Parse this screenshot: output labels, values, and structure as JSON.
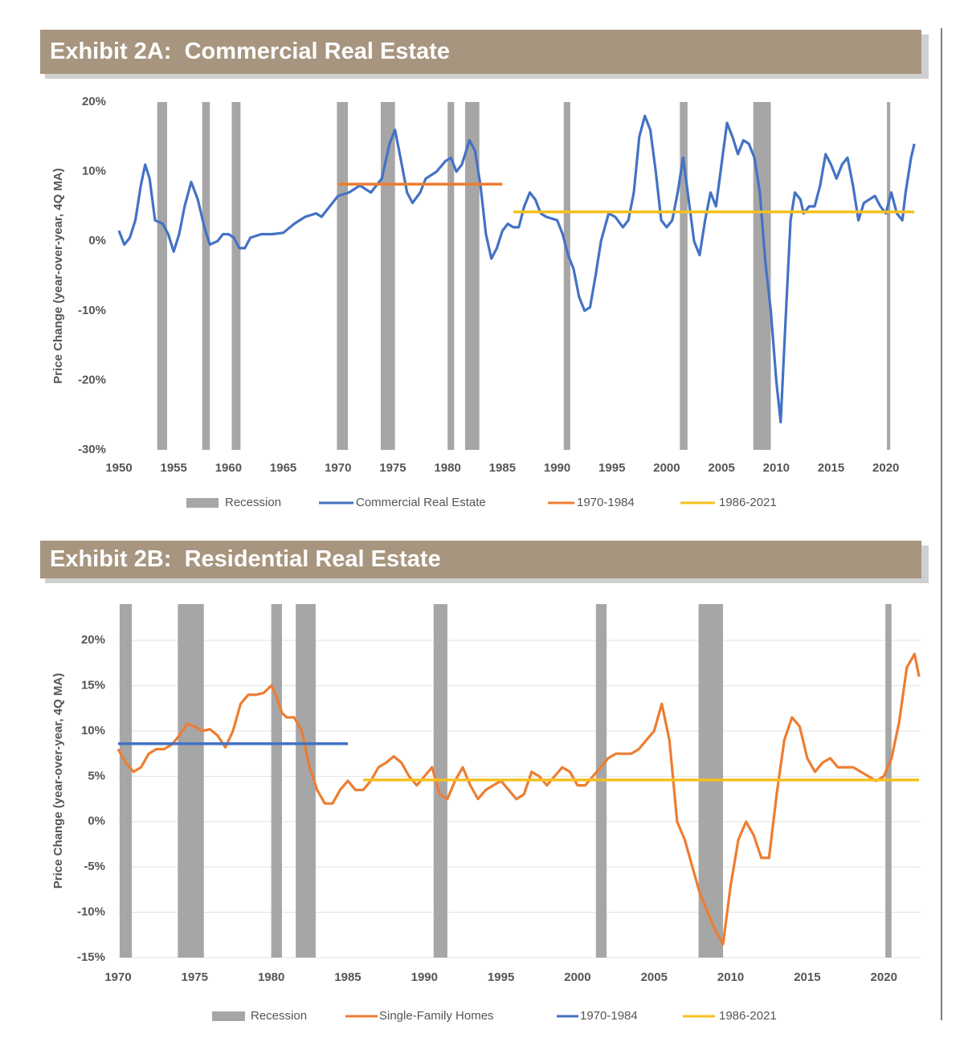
{
  "chart_data": [
    {
      "type": "line",
      "title": "Exhibit 2A:  Commercial Real Estate",
      "y_label": "Price Change (year-over-year, 4Q MA)",
      "xlim": [
        1950,
        2023.1
      ],
      "xticks": [
        1950,
        1955,
        1960,
        1965,
        1970,
        1975,
        1980,
        1985,
        1990,
        1995,
        2000,
        2005,
        2010,
        2015,
        2020
      ],
      "ylim": [
        -30,
        20
      ],
      "yticks": [
        {
          "value": -30,
          "label": "-30%"
        },
        {
          "value": -20,
          "label": "-20%"
        },
        {
          "value": -10,
          "label": "-10%"
        },
        {
          "value": 0,
          "label": "0%"
        },
        {
          "value": 10,
          "label": "10%"
        },
        {
          "value": 20,
          "label": "20%"
        }
      ],
      "grid": false,
      "recessions": {
        "name": "Recession",
        "color": "#a6a6a6",
        "start": [
          1953.5,
          1957.6,
          1960.3,
          1969.9,
          1973.9,
          1980.0,
          1981.6,
          1990.6,
          2001.2,
          2007.9,
          2020.1
        ],
        "end": [
          1954.4,
          1958.3,
          1961.1,
          1970.9,
          1975.2,
          1980.6,
          1982.9,
          1991.2,
          2001.9,
          2009.5,
          2020.4
        ]
      },
      "series": [
        {
          "name": "Commercial Real Estate",
          "color": "#4472c4",
          "x": [
            1950,
            1950.5,
            1951,
            1951.5,
            1952,
            1952.4,
            1952.8,
            1953.3,
            1954,
            1954.5,
            1955,
            1955.5,
            1956,
            1956.6,
            1957.2,
            1957.8,
            1958.3,
            1959,
            1959.5,
            1960,
            1960.5,
            1961,
            1961.5,
            1962,
            1963,
            1964,
            1965,
            1966,
            1967,
            1968,
            1968.5,
            1969,
            1970,
            1971,
            1972,
            1972.5,
            1973,
            1974,
            1974.7,
            1975.2,
            1975.7,
            1976.3,
            1976.8,
            1977.5,
            1978,
            1979,
            1979.8,
            1980.3,
            1980.8,
            1981.3,
            1982,
            1982.5,
            1983,
            1983.5,
            1984,
            1984.5,
            1985,
            1985.5,
            1986,
            1986.5,
            1987,
            1987.5,
            1988,
            1988.5,
            1989,
            1990,
            1990.5,
            1991,
            1991.5,
            1992,
            1992.5,
            1993,
            1993.5,
            1994,
            1994.7,
            1995.3,
            1996,
            1996.5,
            1997,
            1997.5,
            1998,
            1998.5,
            1999,
            1999.5,
            2000,
            2000.5,
            2001,
            2001.5,
            2002,
            2002.5,
            2003,
            2003.5,
            2004,
            2004.5,
            2005,
            2005.5,
            2006,
            2006.5,
            2007,
            2007.5,
            2008,
            2008.5,
            2009,
            2009.5,
            2010,
            2010.4,
            2010.8,
            2011.3,
            2011.7,
            2012.2,
            2012.5,
            2013,
            2013.5,
            2014,
            2014.5,
            2015,
            2015.5,
            2016,
            2016.5,
            2017,
            2017.5,
            2018,
            2018.5,
            2019,
            2019.5,
            2020,
            2020.5,
            2021,
            2021.5,
            2021.8,
            2022.3,
            2022.6
          ],
          "values": [
            1.5,
            -0.5,
            0.5,
            3,
            8,
            11,
            9,
            3,
            2.5,
            1,
            -1.5,
            1,
            5,
            8.5,
            6,
            2,
            -0.5,
            0,
            1,
            1,
            0.5,
            -1,
            -1,
            0.5,
            1,
            1,
            1.2,
            2.5,
            3.5,
            4,
            3.5,
            4.5,
            6.5,
            7,
            8,
            7.5,
            7,
            9,
            14,
            16,
            12,
            7,
            5.5,
            7,
            9,
            10,
            11.5,
            12,
            10,
            11,
            14.5,
            13,
            8,
            1,
            -2.5,
            -1,
            1.5,
            2.5,
            2,
            2,
            5,
            7,
            6,
            4,
            3.5,
            3,
            1,
            -2,
            -4,
            -8,
            -10,
            -9.5,
            -5,
            0,
            4,
            3.5,
            2,
            3,
            7,
            15,
            18,
            16,
            10,
            3,
            2,
            3,
            7,
            12,
            6,
            0,
            -2,
            3,
            7,
            5,
            11,
            17,
            15,
            12.5,
            14.5,
            14,
            12,
            7,
            -3,
            -10,
            -20,
            -26,
            -13,
            3,
            7,
            6,
            4,
            5,
            5,
            8,
            12.5,
            11,
            9,
            11,
            12,
            8,
            3,
            5.5,
            6,
            6.5,
            5,
            4,
            7,
            4,
            3,
            7,
            12,
            14
          ]
        },
        {
          "name": "1970-1984",
          "color": "#ed7d31",
          "x": [
            1970,
            1985
          ],
          "values": [
            8.2,
            8.2
          ]
        },
        {
          "name": "1986-2021",
          "color": "#f5c01f",
          "x": [
            1986,
            2022.6
          ],
          "values": [
            4.2,
            4.2
          ]
        }
      ]
    },
    {
      "type": "line",
      "title": "Exhibit 2B:  Residential Real Estate",
      "y_label": "Price Change (year-over-year, 4Q MA)",
      "xlim": [
        1970,
        2022.4
      ],
      "xticks": [
        1970,
        1975,
        1980,
        1985,
        1990,
        1995,
        2000,
        2005,
        2010,
        2015,
        2020
      ],
      "ylim": [
        -15,
        24
      ],
      "yticks": [
        {
          "value": -15,
          "label": "-15%"
        },
        {
          "value": -10,
          "label": "-10%"
        },
        {
          "value": -5,
          "label": "-5%"
        },
        {
          "value": 0,
          "label": "0%"
        },
        {
          "value": 5,
          "label": "5%"
        },
        {
          "value": 10,
          "label": "10%"
        },
        {
          "value": 15,
          "label": "15%"
        },
        {
          "value": 20,
          "label": "20%"
        }
      ],
      "grid": true,
      "recessions": {
        "name": "Recession",
        "color": "#a6a6a6",
        "start": [
          1970.1,
          1973.9,
          1980.0,
          1981.6,
          1990.6,
          2001.2,
          2007.9,
          2020.1
        ],
        "end": [
          1970.9,
          1975.6,
          1980.7,
          1982.9,
          1991.5,
          2001.9,
          2009.5,
          2020.5
        ]
      },
      "series": [
        {
          "name": "Single-Family Homes",
          "color": "#ed7d31",
          "x": [
            1970,
            1970.5,
            1971,
            1971.5,
            1972,
            1972.5,
            1973,
            1973.5,
            1974,
            1974.5,
            1975,
            1975.5,
            1976,
            1976.5,
            1977,
            1977.5,
            1978,
            1978.5,
            1979,
            1979.5,
            1980,
            1980.3,
            1980.7,
            1981,
            1981.5,
            1982,
            1982.5,
            1983,
            1983.5,
            1984,
            1984.5,
            1985,
            1985.5,
            1986,
            1986.5,
            1987,
            1987.5,
            1988,
            1988.5,
            1989,
            1989.5,
            1990,
            1990.5,
            1991,
            1991.5,
            1992,
            1992.5,
            1993,
            1993.5,
            1994,
            1994.5,
            1995,
            1995.5,
            1996,
            1996.5,
            1997,
            1997.5,
            1998,
            1998.5,
            1999,
            1999.5,
            2000,
            2000.5,
            2001,
            2001.5,
            2002,
            2002.5,
            2003,
            2003.5,
            2004,
            2004.5,
            2005,
            2005.5,
            2006,
            2006.5,
            2007,
            2007.5,
            2008,
            2008.5,
            2009,
            2009.5,
            2010,
            2010.5,
            2011,
            2011.5,
            2012,
            2012.5,
            2013,
            2013.5,
            2014,
            2014.5,
            2015,
            2015.5,
            2016,
            2016.5,
            2017,
            2017.5,
            2018,
            2018.5,
            2019,
            2019.5,
            2020,
            2020.5,
            2021,
            2021.5,
            2022,
            2022.3
          ],
          "values": [
            8,
            6.5,
            5.5,
            6,
            7.5,
            8,
            8,
            8.5,
            9.5,
            10.8,
            10.5,
            10,
            10.2,
            9.5,
            8.2,
            10,
            13,
            14,
            14,
            14.2,
            15,
            14,
            12,
            11.5,
            11.5,
            10,
            6,
            3.5,
            2,
            2,
            3.5,
            4.5,
            3.5,
            3.5,
            4.5,
            6,
            6.5,
            7.2,
            6.5,
            5,
            4,
            5,
            6,
            3,
            2.5,
            4.5,
            6,
            4,
            2.5,
            3.5,
            4,
            4.5,
            3.5,
            2.5,
            3,
            5.5,
            5,
            4,
            5,
            6,
            5.5,
            4,
            4,
            5,
            6,
            7,
            7.5,
            7.5,
            7.5,
            8,
            9,
            10,
            13,
            9,
            0,
            -2,
            -5,
            -8,
            -10,
            -12,
            -13.5,
            -7,
            -2,
            0,
            -1.5,
            -4,
            -4,
            3,
            9,
            11.5,
            10.5,
            7,
            5.5,
            6.5,
            7,
            6,
            6,
            6,
            5.5,
            5,
            4.5,
            5,
            7,
            11,
            17,
            18.5,
            16
          ]
        },
        {
          "name": "1970-1984",
          "color": "#4472c4",
          "x": [
            1970,
            1985
          ],
          "values": [
            8.6,
            8.6
          ]
        },
        {
          "name": "1986-2021",
          "color": "#f5c01f",
          "x": [
            1986,
            2022.3
          ],
          "values": [
            4.6,
            4.6
          ]
        }
      ]
    }
  ]
}
